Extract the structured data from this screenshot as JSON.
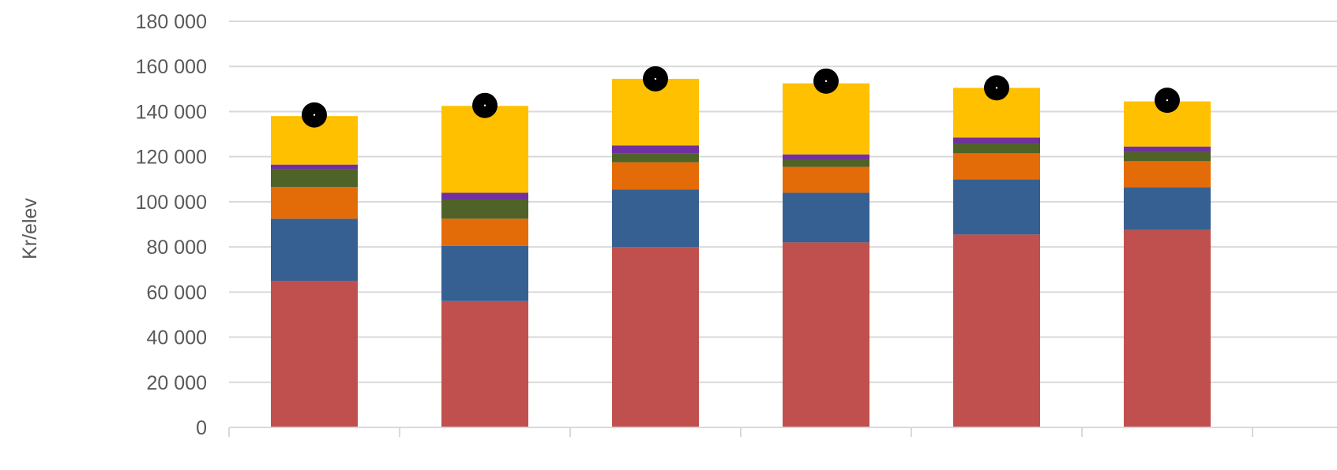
{
  "chart_data": {
    "type": "bar",
    "stacked": true,
    "ylabel": "Kr/elev",
    "ylim": [
      0,
      180000
    ],
    "ytick_step": 20000,
    "yticks": [
      "0",
      "20 000",
      "40 000",
      "60 000",
      "80 000",
      "100 000",
      "120 000",
      "140 000",
      "160 000",
      "180 000"
    ],
    "grid": true,
    "categories": [
      "",
      "",
      "",
      "",
      "",
      ""
    ],
    "series": [
      {
        "color": "#c0504d",
        "values": [
          65000,
          56000,
          80000,
          82000,
          85500,
          87500
        ]
      },
      {
        "color": "#366092",
        "values": [
          27500,
          24500,
          25500,
          22000,
          24500,
          19000
        ]
      },
      {
        "color": "#e36c09",
        "values": [
          14000,
          12000,
          12000,
          11500,
          11500,
          11500
        ]
      },
      {
        "color": "#4f6228",
        "values": [
          8000,
          8500,
          4000,
          3000,
          4500,
          4000
        ]
      },
      {
        "color": "#7030a0",
        "values": [
          2000,
          3000,
          3500,
          2500,
          2500,
          2500
        ]
      },
      {
        "color": "#ffc000",
        "values": [
          21500,
          38500,
          29500,
          31500,
          22000,
          20000
        ]
      }
    ],
    "markers": {
      "color": "#000000",
      "values": [
        138500,
        142700,
        154500,
        153500,
        150500,
        145000
      ]
    }
  }
}
